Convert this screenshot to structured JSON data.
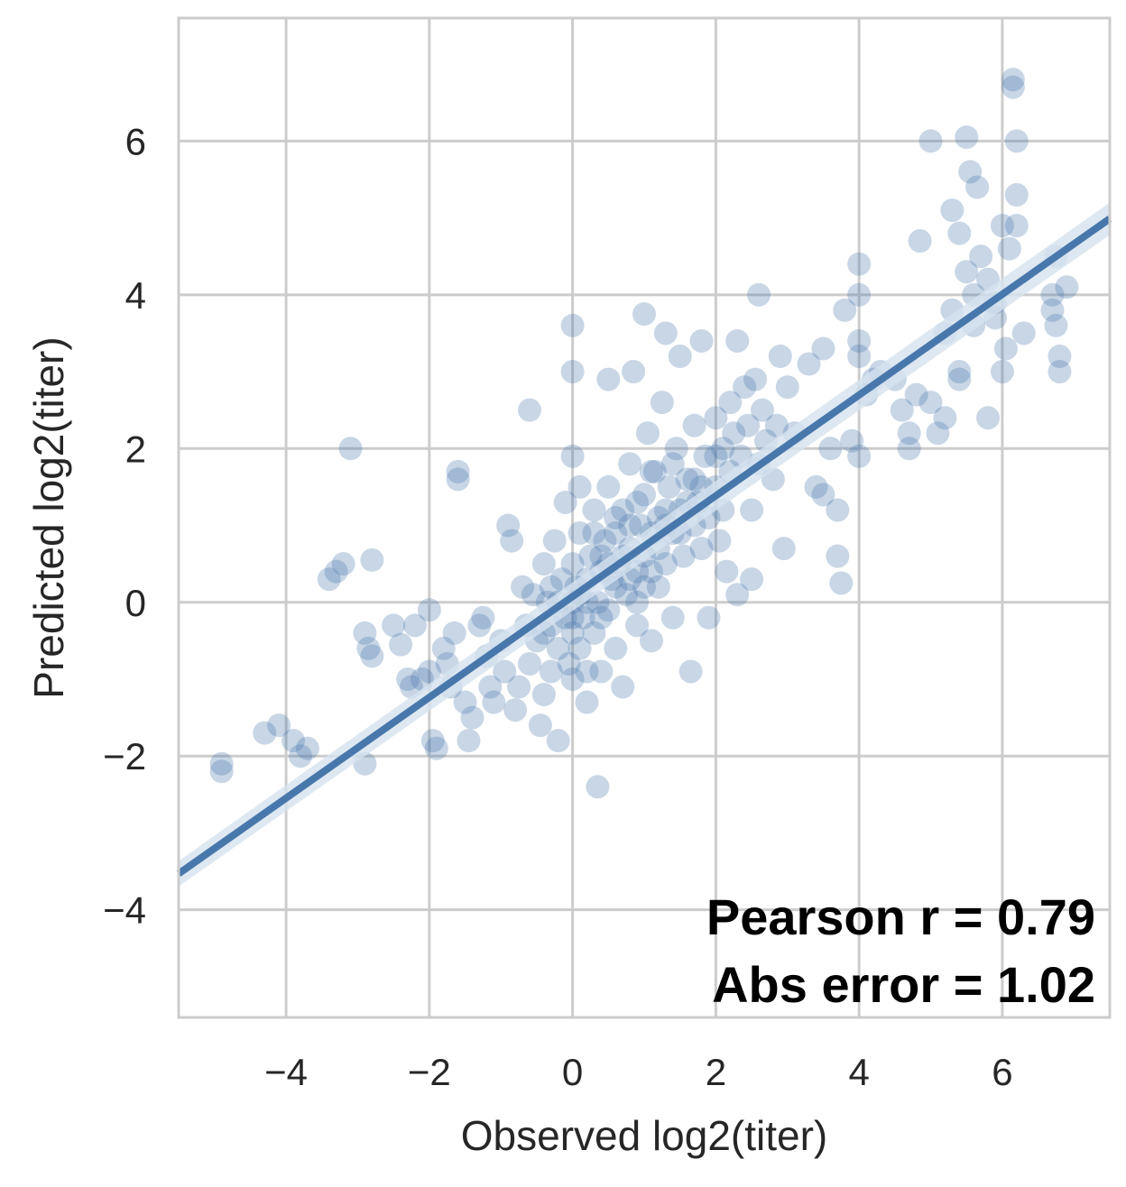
{
  "chart_data": {
    "type": "scatter",
    "xlabel": "Observed log2(titer)",
    "ylabel": "Predicted log2(titer)",
    "xlim": [
      -5.5,
      7.5
    ],
    "ylim": [
      -5.4,
      7.6
    ],
    "xticks": [
      -4,
      -2,
      0,
      2,
      4,
      6
    ],
    "yticks": [
      -4,
      -2,
      0,
      2,
      4,
      6
    ],
    "xtick_labels": [
      "−4",
      "−2",
      "0",
      "2",
      "4",
      "6"
    ],
    "ytick_labels": [
      "−4",
      "−2",
      "0",
      "2",
      "4",
      "6"
    ],
    "grid": true,
    "colors": {
      "point": "#4878ab",
      "line": "#4878ab",
      "grid": "#cccccc",
      "ci_band": "#d6e2ef"
    },
    "regression_line": {
      "x": [
        -5.5,
        7.5
      ],
      "y": [
        -3.53,
        4.99
      ]
    },
    "annotations": [
      "Pearson r = 0.79",
      "Abs error = 1.02"
    ],
    "points": [
      [
        -4.9,
        -2.2
      ],
      [
        -4.9,
        -2.1
      ],
      [
        -4.3,
        -1.7
      ],
      [
        -4.1,
        -1.6
      ],
      [
        -3.9,
        -1.8
      ],
      [
        -3.8,
        -2.0
      ],
      [
        -3.7,
        -1.9
      ],
      [
        -3.4,
        0.3
      ],
      [
        -3.3,
        0.4
      ],
      [
        -3.2,
        0.5
      ],
      [
        -3.1,
        2.0
      ],
      [
        -2.8,
        0.55
      ],
      [
        -2.9,
        -0.4
      ],
      [
        -2.85,
        -0.6
      ],
      [
        -2.8,
        -0.7
      ],
      [
        -2.9,
        -2.1
      ],
      [
        -2.5,
        -0.3
      ],
      [
        -2.4,
        -0.55
      ],
      [
        -2.3,
        -1.0
      ],
      [
        -2.25,
        -1.1
      ],
      [
        -2.1,
        -1.0
      ],
      [
        -2.0,
        -0.9
      ],
      [
        -2.2,
        -0.3
      ],
      [
        -2.0,
        -0.1
      ],
      [
        -1.95,
        -1.8
      ],
      [
        -1.9,
        -1.9
      ],
      [
        -1.8,
        -0.6
      ],
      [
        -1.75,
        -0.8
      ],
      [
        -1.7,
        -1.1
      ],
      [
        -1.65,
        -0.4
      ],
      [
        -1.6,
        1.7
      ],
      [
        -1.6,
        1.6
      ],
      [
        -1.5,
        -1.3
      ],
      [
        -1.45,
        -1.8
      ],
      [
        -1.4,
        -1.5
      ],
      [
        -1.3,
        -0.3
      ],
      [
        -1.25,
        -0.2
      ],
      [
        -1.2,
        -0.7
      ],
      [
        -1.15,
        -1.1
      ],
      [
        -1.1,
        -1.3
      ],
      [
        -1.0,
        -0.5
      ],
      [
        -0.95,
        -0.9
      ],
      [
        -0.9,
        1.0
      ],
      [
        -0.85,
        0.8
      ],
      [
        -0.8,
        -1.4
      ],
      [
        -0.75,
        -1.1
      ],
      [
        -0.7,
        0.2
      ],
      [
        -0.65,
        -0.3
      ],
      [
        -0.6,
        -0.8
      ],
      [
        -0.6,
        2.5
      ],
      [
        -0.55,
        0.1
      ],
      [
        -0.5,
        -0.5
      ],
      [
        -0.45,
        -1.6
      ],
      [
        -0.4,
        0.5
      ],
      [
        -0.4,
        -1.2
      ],
      [
        -0.35,
        0.0
      ],
      [
        -0.3,
        -0.3
      ],
      [
        -0.3,
        -0.9
      ],
      [
        -0.25,
        0.8
      ],
      [
        -0.2,
        -0.6
      ],
      [
        -0.2,
        -1.8
      ],
      [
        -0.15,
        0.3
      ],
      [
        -0.1,
        -0.2
      ],
      [
        -0.1,
        1.3
      ],
      [
        -0.05,
        -0.8
      ],
      [
        0.0,
        0.0
      ],
      [
        0.0,
        0.5
      ],
      [
        0.0,
        -0.4
      ],
      [
        0.0,
        1.9
      ],
      [
        0.0,
        3.6
      ],
      [
        0.0,
        3.0
      ],
      [
        0.0,
        -1.0
      ],
      [
        0.05,
        0.2
      ],
      [
        0.1,
        -0.6
      ],
      [
        0.1,
        0.9
      ],
      [
        0.1,
        1.5
      ],
      [
        0.15,
        -0.2
      ],
      [
        0.2,
        0.3
      ],
      [
        0.2,
        -1.3
      ],
      [
        0.25,
        0.6
      ],
      [
        0.3,
        -0.4
      ],
      [
        0.3,
        1.2
      ],
      [
        0.35,
        0.0
      ],
      [
        0.35,
        -2.4
      ],
      [
        0.4,
        0.4
      ],
      [
        0.4,
        -0.9
      ],
      [
        0.45,
        0.8
      ],
      [
        0.5,
        -0.1
      ],
      [
        0.5,
        1.5
      ],
      [
        0.5,
        2.9
      ],
      [
        0.55,
        0.3
      ],
      [
        0.6,
        0.9
      ],
      [
        0.6,
        -0.6
      ],
      [
        0.65,
        0.5
      ],
      [
        0.7,
        1.2
      ],
      [
        0.7,
        -1.1
      ],
      [
        0.75,
        0.1
      ],
      [
        0.8,
        0.7
      ],
      [
        0.8,
        1.8
      ],
      [
        0.85,
        3.0
      ],
      [
        0.9,
        0.4
      ],
      [
        0.9,
        -0.3
      ],
      [
        0.95,
        1.0
      ],
      [
        1.0,
        0.6
      ],
      [
        1.0,
        1.4
      ],
      [
        1.0,
        3.75
      ],
      [
        1.05,
        2.2
      ],
      [
        1.1,
        0.9
      ],
      [
        1.1,
        -0.5
      ],
      [
        1.15,
        1.7
      ],
      [
        1.2,
        0.2
      ],
      [
        1.2,
        1.1
      ],
      [
        1.25,
        2.6
      ],
      [
        1.3,
        3.5
      ],
      [
        1.3,
        0.5
      ],
      [
        1.35,
        1.5
      ],
      [
        1.4,
        0.9
      ],
      [
        1.4,
        -0.2
      ],
      [
        1.45,
        2.0
      ],
      [
        1.5,
        1.2
      ],
      [
        1.5,
        3.2
      ],
      [
        1.55,
        0.6
      ],
      [
        1.6,
        1.6
      ],
      [
        1.65,
        -0.9
      ],
      [
        1.7,
        1.0
      ],
      [
        1.7,
        2.3
      ],
      [
        1.75,
        1.3
      ],
      [
        1.8,
        3.4
      ],
      [
        1.8,
        0.7
      ],
      [
        1.85,
        1.9
      ],
      [
        1.9,
        1.1
      ],
      [
        1.9,
        -0.2
      ],
      [
        2.0,
        1.5
      ],
      [
        2.0,
        2.4
      ],
      [
        2.05,
        0.8
      ],
      [
        2.1,
        1.2
      ],
      [
        2.1,
        2.0
      ],
      [
        2.15,
        0.4
      ],
      [
        2.2,
        2.6
      ],
      [
        2.2,
        1.7
      ],
      [
        2.25,
        2.2
      ],
      [
        2.3,
        3.4
      ],
      [
        2.3,
        0.1
      ],
      [
        2.35,
        1.9
      ],
      [
        2.4,
        2.8
      ],
      [
        2.45,
        2.3
      ],
      [
        2.5,
        1.2
      ],
      [
        2.5,
        0.3
      ],
      [
        2.55,
        2.9
      ],
      [
        2.6,
        1.8
      ],
      [
        2.6,
        4.0
      ],
      [
        2.65,
        2.5
      ],
      [
        2.7,
        2.1
      ],
      [
        2.8,
        1.6
      ],
      [
        2.85,
        2.3
      ],
      [
        2.9,
        3.2
      ],
      [
        2.95,
        0.7
      ],
      [
        3.0,
        2.8
      ],
      [
        3.1,
        2.2
      ],
      [
        3.3,
        3.1
      ],
      [
        3.4,
        1.5
      ],
      [
        3.5,
        1.4
      ],
      [
        3.5,
        3.3
      ],
      [
        3.6,
        2.0
      ],
      [
        3.7,
        1.2
      ],
      [
        3.7,
        0.6
      ],
      [
        3.75,
        0.25
      ],
      [
        3.8,
        3.8
      ],
      [
        3.9,
        2.1
      ],
      [
        4.0,
        4.0
      ],
      [
        4.0,
        4.4
      ],
      [
        4.0,
        3.4
      ],
      [
        4.0,
        1.9
      ],
      [
        4.0,
        3.2
      ],
      [
        4.1,
        2.7
      ],
      [
        4.2,
        2.9
      ],
      [
        4.3,
        3.0
      ],
      [
        4.5,
        2.9
      ],
      [
        4.6,
        2.5
      ],
      [
        4.7,
        2.2
      ],
      [
        4.7,
        2.0
      ],
      [
        4.8,
        2.7
      ],
      [
        4.85,
        4.7
      ],
      [
        5.0,
        2.6
      ],
      [
        5.0,
        6.0
      ],
      [
        5.1,
        2.2
      ],
      [
        5.2,
        2.4
      ],
      [
        5.2,
        3.5
      ],
      [
        5.3,
        5.1
      ],
      [
        5.3,
        3.8
      ],
      [
        5.4,
        3.0
      ],
      [
        5.4,
        4.8
      ],
      [
        5.4,
        2.9
      ],
      [
        5.5,
        4.3
      ],
      [
        5.5,
        6.05
      ],
      [
        5.55,
        5.6
      ],
      [
        5.6,
        4.0
      ],
      [
        5.6,
        3.6
      ],
      [
        5.65,
        5.4
      ],
      [
        5.7,
        4.5
      ],
      [
        5.8,
        2.4
      ],
      [
        5.8,
        4.2
      ],
      [
        5.9,
        3.7
      ],
      [
        5.9,
        3.9
      ],
      [
        6.0,
        4.9
      ],
      [
        6.0,
        3.0
      ],
      [
        6.05,
        3.3
      ],
      [
        6.1,
        4.6
      ],
      [
        6.15,
        6.7
      ],
      [
        6.15,
        6.8
      ],
      [
        6.2,
        5.3
      ],
      [
        6.2,
        4.9
      ],
      [
        6.2,
        6.0
      ],
      [
        6.3,
        3.5
      ],
      [
        6.7,
        4.0
      ],
      [
        6.7,
        3.8
      ],
      [
        6.75,
        3.6
      ],
      [
        6.75,
        4.5
      ],
      [
        6.8,
        3.0
      ],
      [
        6.8,
        3.2
      ],
      [
        6.9,
        4.1
      ],
      [
        0.9,
        1.3
      ],
      [
        1.1,
        1.7
      ],
      [
        1.3,
        1.2
      ],
      [
        0.6,
        0.2
      ],
      [
        0.2,
        0.0
      ],
      [
        0.7,
        0.6
      ],
      [
        1.2,
        0.7
      ],
      [
        1.6,
        1.3
      ],
      [
        0.4,
        -0.2
      ],
      [
        0.0,
        -0.2
      ],
      [
        -0.3,
        0.2
      ],
      [
        0.8,
        1.0
      ],
      [
        1.0,
        0.2
      ],
      [
        1.4,
        1.8
      ],
      [
        0.3,
        0.9
      ],
      [
        0.5,
        0.5
      ],
      [
        0.9,
        0.0
      ],
      [
        1.5,
        0.9
      ],
      [
        1.8,
        1.5
      ],
      [
        2.0,
        1.9
      ],
      [
        0.1,
        0.1
      ],
      [
        0.6,
        1.1
      ],
      [
        1.1,
        0.4
      ],
      [
        0.4,
        0.6
      ],
      [
        -0.2,
        0.0
      ],
      [
        1.3,
        1.0
      ],
      [
        0.2,
        -0.9
      ],
      [
        -0.4,
        -0.4
      ],
      [
        0.8,
        0.3
      ],
      [
        1.7,
        1.6
      ]
    ]
  }
}
